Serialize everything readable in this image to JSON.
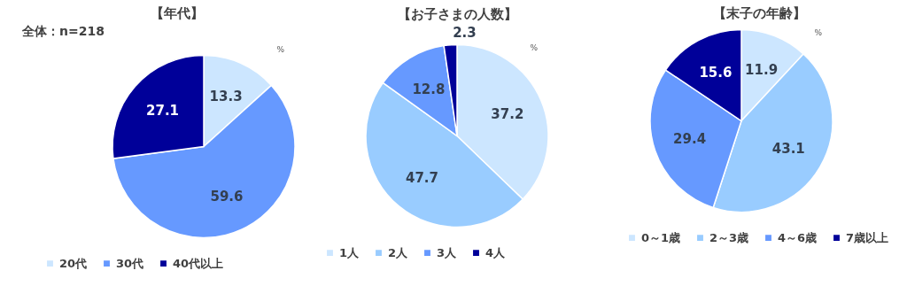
{
  "chart_data": [
    {
      "type": "pie",
      "title": "【年代】",
      "categories": [
        "20代",
        "30代",
        "40代以上"
      ],
      "values": [
        13.3,
        59.6,
        27.1
      ],
      "colors": [
        "#cce6ff",
        "#6699ff",
        "#000099"
      ],
      "data_labels": true,
      "legend": "bottom",
      "annotations": [
        "全体：n=218",
        "%"
      ]
    },
    {
      "type": "pie",
      "title": "【お子さまの人数】",
      "categories": [
        "1人",
        "2人",
        "3人",
        "4人"
      ],
      "values": [
        37.2,
        47.7,
        12.8,
        2.3
      ],
      "colors": [
        "#cce6ff",
        "#99ccff",
        "#6699ff",
        "#000099"
      ],
      "data_labels": true,
      "legend": "bottom",
      "annotations": [
        "%"
      ]
    },
    {
      "type": "pie",
      "title": "【末子の年齢】",
      "categories": [
        "0～1歳",
        "2～3歳",
        "4～6歳",
        "7歳以上"
      ],
      "values": [
        11.9,
        43.1,
        29.4,
        15.6
      ],
      "colors": [
        "#cce6ff",
        "#99ccff",
        "#6699ff",
        "#000099"
      ],
      "data_labels": true,
      "legend": "bottom",
      "annotations": [
        "%"
      ]
    }
  ]
}
